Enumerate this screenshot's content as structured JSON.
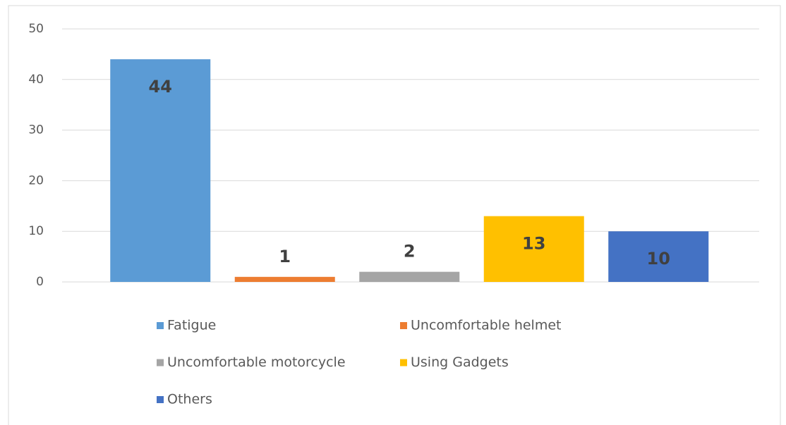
{
  "chart_data": {
    "type": "bar",
    "categories": [
      "Fatigue",
      "Uncomfortable helmet",
      "Uncomfortable motorcycle",
      "Using Gadgets",
      "Others"
    ],
    "values": [
      44,
      1,
      2,
      13,
      10
    ],
    "colors": [
      "#5b9bd5",
      "#ed7d31",
      "#a5a5a5",
      "#ffc000",
      "#4472c4"
    ],
    "ylim": [
      0,
      50
    ],
    "yticks": [
      0,
      10,
      20,
      30,
      40,
      50
    ],
    "grid": true,
    "legend": "bottom"
  }
}
